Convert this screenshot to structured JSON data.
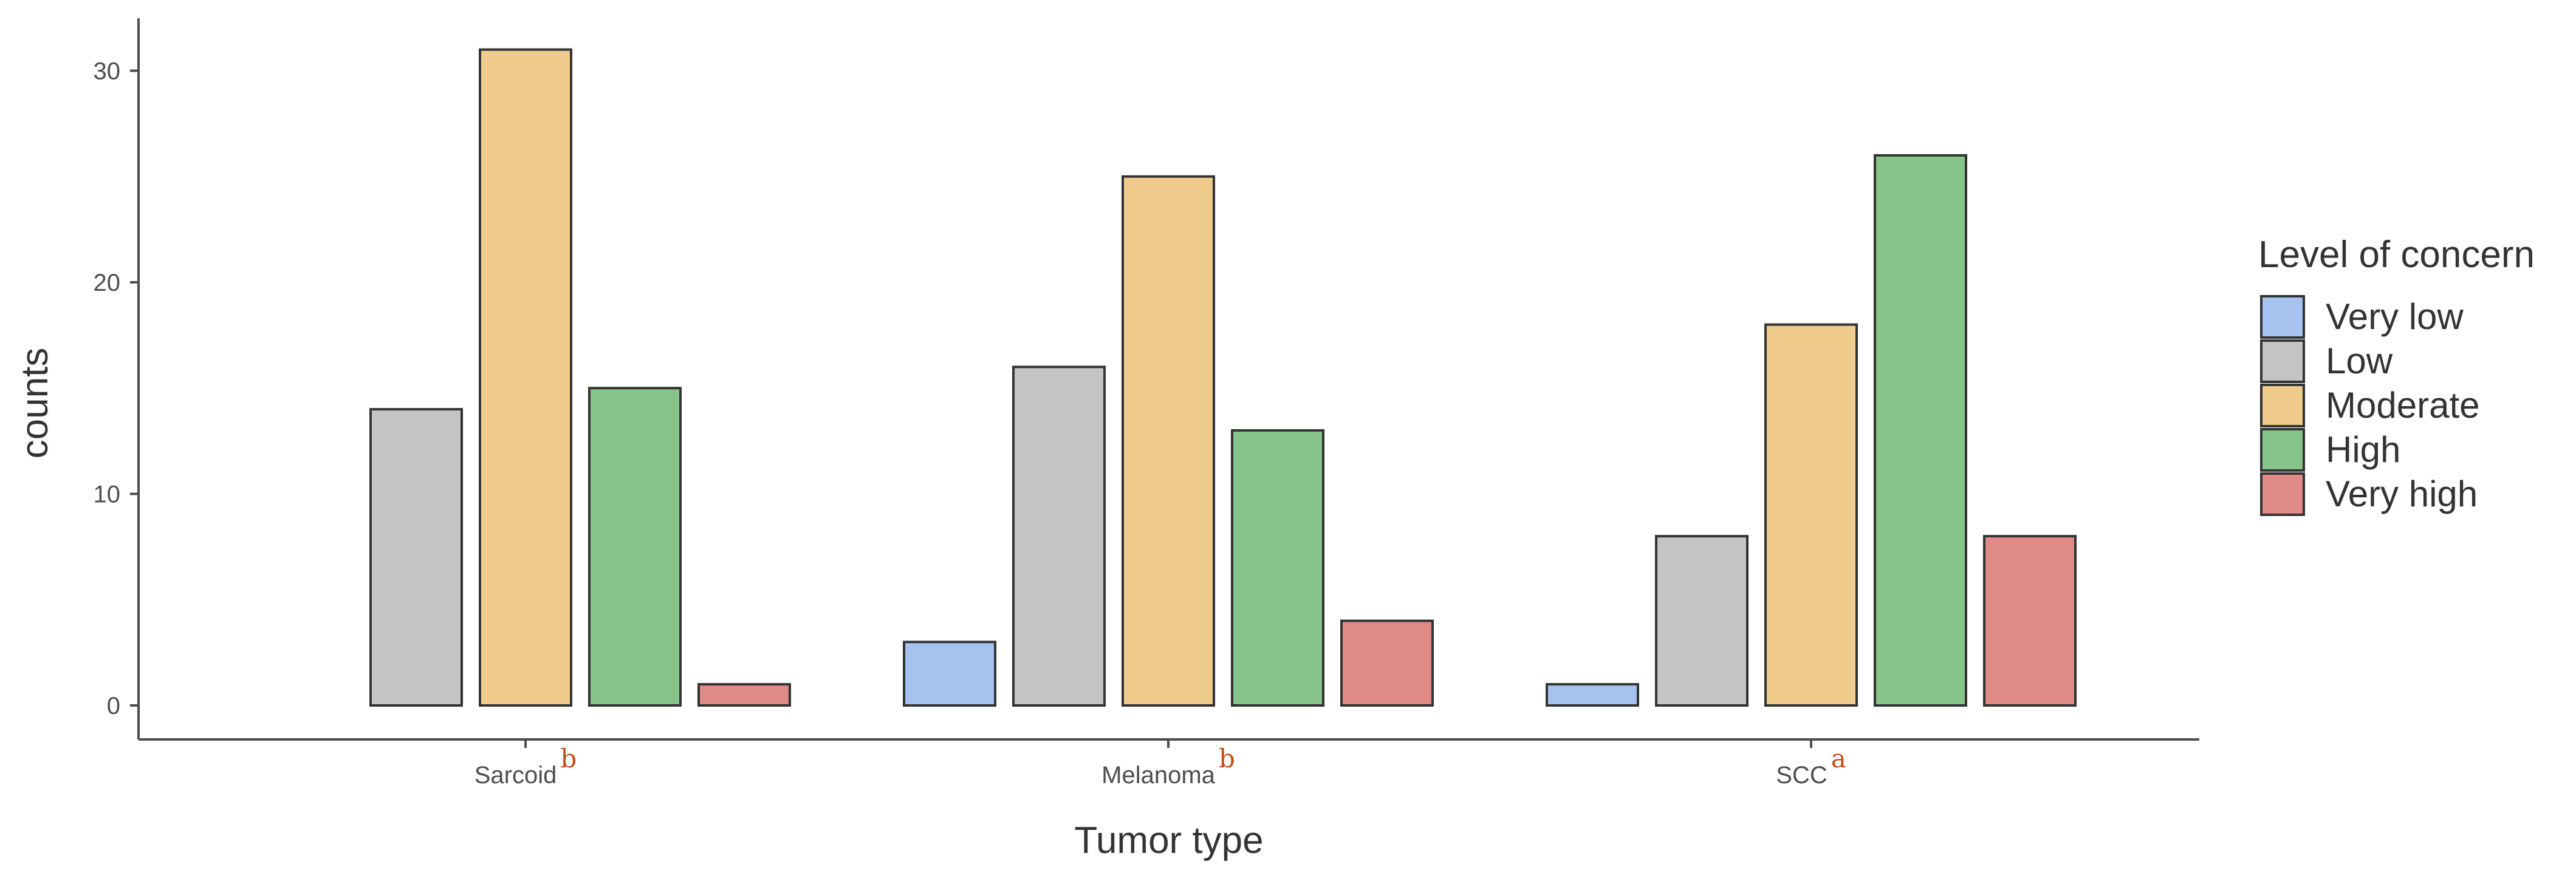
{
  "chart_data": {
    "type": "bar",
    "title": "",
    "xlabel": "Tumor type",
    "ylabel": "counts",
    "categories": [
      "Sarcoid",
      "Melanoma",
      "SCC"
    ],
    "category_superscripts": [
      "b",
      "b",
      "a"
    ],
    "superscript_color": "#c0501a",
    "ylim": [
      0,
      32
    ],
    "yticks": [
      0,
      10,
      20,
      30
    ],
    "grid": false,
    "legend": {
      "title": "Level of concern",
      "placement": "right"
    },
    "series": [
      {
        "name": "Very low",
        "color": "#a6c3f0",
        "values": [
          0,
          3,
          1
        ]
      },
      {
        "name": "Low",
        "color": "#c4c4c4",
        "values": [
          14,
          16,
          8
        ]
      },
      {
        "name": "Moderate",
        "color": "#f0cc8c",
        "values": [
          31,
          25,
          18
        ]
      },
      {
        "name": "High",
        "color": "#86c489",
        "values": [
          15,
          13,
          26
        ]
      },
      {
        "name": "Very high",
        "color": "#e08a88",
        "values": [
          1,
          4,
          8
        ]
      }
    ]
  }
}
